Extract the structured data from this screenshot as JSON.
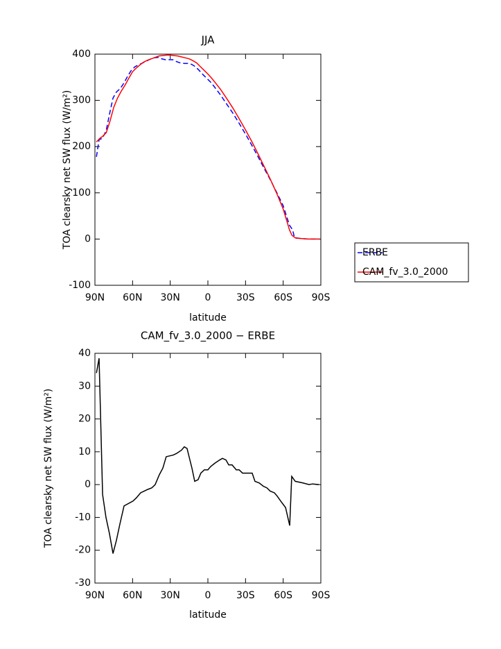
{
  "chart_data": [
    {
      "type": "line",
      "title": "JJA",
      "xlabel": "latitude",
      "ylabel": "TOA clearsky net SW flux (W/m²)",
      "xlim": [
        90,
        -90
      ],
      "xticks": [
        {
          "value": 90,
          "label": "90N"
        },
        {
          "value": 60,
          "label": "60N"
        },
        {
          "value": 30,
          "label": "30N"
        },
        0,
        {
          "value": -30,
          "label": "30S"
        },
        {
          "value": -60,
          "label": "60S"
        },
        {
          "value": -90,
          "label": "90S"
        }
      ],
      "ylim": [
        -100,
        400
      ],
      "yticks": [
        -100,
        0,
        100,
        200,
        300,
        400
      ],
      "legend": "right",
      "series": [
        {
          "name": "ERBE",
          "color": "#0000ff",
          "line_style": "dashed",
          "x": [
            88.8,
            86.7,
            84,
            81,
            78.4,
            75.6,
            72.9,
            70,
            67,
            64,
            61,
            58,
            55,
            52,
            49,
            46,
            43,
            40,
            37,
            34,
            31,
            28,
            25,
            22,
            19,
            16,
            13,
            10,
            7,
            4,
            1,
            -2,
            -5,
            -10,
            -15,
            -20,
            -25,
            -30,
            -35,
            -40,
            -45,
            -50,
            -55,
            -60,
            -62,
            -65,
            -67.5,
            -69,
            -72,
            -75,
            -80,
            -85,
            -88.8
          ],
          "values": [
            178,
            215,
            218,
            235,
            270,
            305,
            318,
            325,
            337,
            352,
            365,
            373,
            377,
            381,
            385,
            389,
            392,
            393,
            390,
            388,
            388,
            388,
            384,
            381,
            380,
            380,
            378,
            373,
            365,
            356,
            348,
            340,
            330,
            312,
            292,
            272,
            250,
            227,
            203,
            178,
            152,
            127,
            100,
            72,
            55,
            30,
            20,
            3,
            2,
            1,
            0,
            0,
            0
          ]
        },
        {
          "name": "CAM_fv_3.0_2000",
          "color": "#ff0000",
          "line_style": "solid",
          "x": [
            88.8,
            86,
            84,
            81,
            78,
            75,
            72,
            69,
            66,
            63,
            60,
            57,
            54,
            51,
            48,
            45,
            42,
            39,
            36,
            33,
            30,
            27,
            24,
            21,
            18,
            15,
            12,
            9,
            6,
            3,
            0,
            -3,
            -6,
            -10,
            -15,
            -20,
            -25,
            -30,
            -35,
            -40,
            -45,
            -50,
            -55,
            -60,
            -63,
            -65,
            -67,
            -70,
            -75,
            -80,
            -85,
            -88.8
          ],
          "values": [
            210,
            218,
            222,
            230,
            255,
            285,
            305,
            320,
            333,
            348,
            362,
            370,
            377,
            383,
            387,
            390,
            393,
            396,
            397,
            398,
            398,
            397,
            396,
            394,
            392,
            390,
            386,
            381,
            373,
            365,
            357,
            348,
            338,
            324,
            304,
            283,
            260,
            236,
            211,
            184,
            156,
            128,
            98,
            65,
            38,
            20,
            8,
            2,
            1,
            0,
            0,
            0
          ]
        }
      ]
    },
    {
      "type": "line",
      "title": "CAM_fv_3.0_2000 − ERBE",
      "xlabel": "latitude",
      "ylabel": "TOA clearsky net SW flux (W/m²)",
      "xlim": [
        90,
        -90
      ],
      "xticks": [
        {
          "value": 90,
          "label": "90N"
        },
        {
          "value": 60,
          "label": "60N"
        },
        {
          "value": 30,
          "label": "30N"
        },
        0,
        {
          "value": -30,
          "label": "30S"
        },
        {
          "value": -60,
          "label": "60S"
        },
        {
          "value": -90,
          "label": "90S"
        }
      ],
      "ylim": [
        -30,
        40
      ],
      "yticks": [
        -30,
        -20,
        -10,
        0,
        10,
        20,
        30,
        40
      ],
      "series": [
        {
          "color": "#000000",
          "line_style": "solid",
          "x": [
            88.8,
            86.7,
            83.9,
            81.2,
            78.4,
            75.6,
            72.9,
            70.1,
            66.8,
            59.6,
            56.9,
            53.6,
            50.8,
            48.1,
            44.7,
            42.0,
            38.7,
            35.9,
            33.2,
            27.6,
            24.9,
            21.0,
            18.8,
            16.6,
            12.7,
            10.5,
            7.8,
            5.6,
            2.8,
            0,
            -2.2,
            -5.5,
            -9.4,
            -11.6,
            -14.4,
            -16.6,
            -19.3,
            -22.6,
            -24.9,
            -27.6,
            -32.0,
            -35.3,
            -37.5,
            -40.9,
            -44.2,
            -47.0,
            -49.7,
            -53.0,
            -55.2,
            -58.0,
            -61.9,
            -65.2,
            -66.8,
            -69.6,
            -75.7,
            -80.6,
            -83.4,
            -88.4
          ],
          "values": [
            34,
            38.5,
            -3,
            -10,
            -15,
            -21,
            -17,
            -12,
            -6.5,
            -5,
            -4,
            -2.5,
            -2,
            -1.5,
            -1,
            0,
            3,
            5,
            8.5,
            9,
            9.5,
            10.5,
            11.5,
            11,
            5,
            1,
            1.5,
            3.5,
            4.5,
            4.5,
            5.5,
            6.5,
            7.5,
            8,
            7.5,
            6,
            6,
            4.5,
            4.5,
            3.5,
            3.5,
            3.5,
            1,
            0.5,
            -0.5,
            -1,
            -2,
            -2.5,
            -3.5,
            -5,
            -7,
            -12.5,
            2.5,
            1,
            0.5,
            0,
            0.2,
            0
          ]
        }
      ]
    }
  ]
}
